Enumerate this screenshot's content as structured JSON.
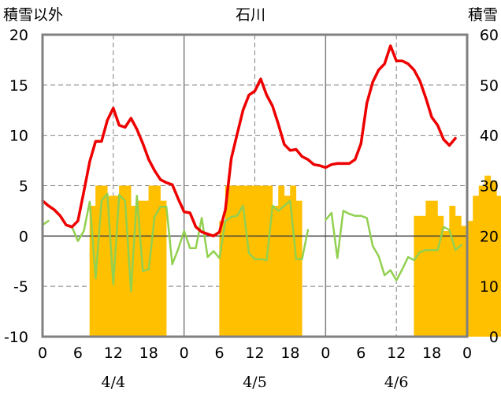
{
  "chart_data": {
    "type": "bar+line",
    "title": "石川",
    "ylabel_left": "積雪以外",
    "ylabel_right": "積雪",
    "y_left_range": [
      -10,
      20
    ],
    "y_left_ticks": [
      "20",
      "15",
      "10",
      "5",
      "0",
      "-5",
      "-10"
    ],
    "y_right_range": [
      0,
      60
    ],
    "y_right_ticks": [
      "60",
      "50",
      "40",
      "30",
      "20",
      "10",
      "0"
    ],
    "x_tick_labels": [
      "0",
      "6",
      "12",
      "18",
      "0",
      "6",
      "12",
      "18",
      "0",
      "6",
      "12",
      "18",
      "0"
    ],
    "dates": [
      "4/4",
      "4/5",
      "4/6"
    ],
    "grid": "dashed at 12h, solid day separators, dashed horizontal lines",
    "colors": {
      "bars": "#FFC000",
      "red": "#EE0000",
      "green": "#92D050",
      "purple": "#7030A0",
      "frame": "#808080"
    },
    "snow_depth_bars": [
      0,
      0,
      0,
      0,
      0,
      0,
      0,
      0,
      26,
      30,
      30,
      28,
      28,
      30,
      30,
      26,
      27,
      27,
      30,
      30,
      27,
      0,
      0,
      0,
      0,
      0,
      0,
      0,
      0,
      0,
      23,
      30,
      30,
      30,
      30,
      30,
      30,
      30,
      30,
      26,
      30,
      28,
      30,
      27,
      0,
      0,
      0,
      0,
      0,
      0,
      0,
      0,
      0,
      0,
      0,
      0,
      0,
      0,
      0,
      0,
      0,
      0,
      0,
      24,
      24,
      27,
      27,
      24,
      21,
      26,
      24,
      22,
      23,
      28,
      30,
      32,
      31,
      28,
      0,
      0,
      0,
      0
    ],
    "red_series": [
      3.5,
      3.0,
      2.6,
      2.0,
      1.1,
      0.9,
      1.5,
      4.4,
      7.4,
      9.4,
      9.4,
      11.5,
      12.7,
      11.0,
      10.8,
      11.7,
      10.6,
      9.2,
      7.6,
      6.5,
      5.6,
      5.3,
      5.1,
      3.7,
      2.4,
      2.3,
      0.9,
      0.4,
      0.2,
      0.0,
      0.4,
      2.6,
      7.7,
      10.1,
      12.5,
      14.0,
      14.4,
      15.6,
      14.0,
      12.9,
      11.1,
      9.1,
      8.5,
      8.6,
      7.9,
      7.6,
      7.1,
      7.0,
      6.8,
      7.1,
      7.2,
      7.2,
      7.2,
      7.6,
      9.2,
      13.2,
      15.3,
      16.5,
      17.1,
      18.9,
      17.4,
      17.4,
      17.1,
      16.5,
      15.4,
      13.7,
      11.8,
      11.0,
      9.6,
      9.0,
      9.7
    ],
    "green_series": [
      1.1,
      1.5,
      null,
      null,
      null,
      0.9,
      -0.5,
      0.5,
      3.4,
      -4.2,
      3.5,
      4.2,
      -4.8,
      4.1,
      3.5,
      -5.5,
      4.0,
      -3.5,
      -3.3,
      1.9,
      2.9,
      2.9,
      -2.8,
      -1.3,
      0.5,
      -1.2,
      -1.2,
      1.8,
      -2.1,
      -1.5,
      -2.2,
      1.5,
      1.9,
      2.0,
      3.0,
      -1.7,
      -2.3,
      -2.3,
      -2.4,
      3.0,
      2.5,
      3.0,
      3.5,
      -2.3,
      -2.3,
      0.6,
      null,
      null,
      1.6,
      2.3,
      -2.2,
      2.5,
      2.2,
      2.0,
      2.0,
      1.8,
      -1.0,
      -2.0,
      -3.9,
      -3.4,
      -4.4,
      -3.3,
      -2.1,
      -2.4,
      -1.6,
      -1.4,
      -1.4,
      -1.4,
      0.9,
      0.6,
      -1.4,
      -0.9
    ],
    "purple_series_value": -10
  }
}
